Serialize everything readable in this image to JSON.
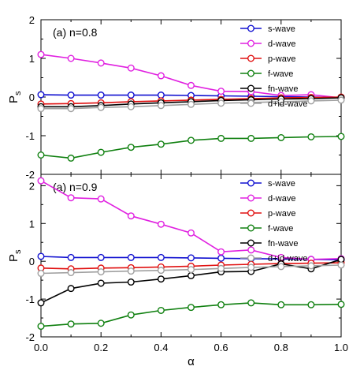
{
  "chart_data": [
    {
      "type": "line",
      "panel_label": "(a) n=0.8",
      "ylabel": "P",
      "ylabel_sub": "s",
      "xlabel": "",
      "xlim": [
        0,
        1
      ],
      "ylim": [
        -2,
        2
      ],
      "yticks": [
        -2,
        -1,
        0,
        1,
        2
      ],
      "xticks": [],
      "grid": false,
      "legend_placement": "top-right",
      "x": [
        0.0,
        0.1,
        0.2,
        0.3,
        0.4,
        0.5,
        0.6,
        0.7,
        0.8,
        0.9,
        1.0
      ],
      "series": [
        {
          "name": "s-wave",
          "color": "#1010d0",
          "values": [
            0.06,
            0.05,
            0.05,
            0.05,
            0.05,
            0.04,
            0.03,
            0.02,
            0.01,
            0.0,
            -0.01
          ]
        },
        {
          "name": "d-wave",
          "color": "#e020e0",
          "values": [
            1.1,
            1.0,
            0.88,
            0.75,
            0.55,
            0.3,
            0.15,
            0.14,
            0.04,
            0.06,
            -0.02
          ]
        },
        {
          "name": "p-wave",
          "color": "#e01010",
          "values": [
            -0.18,
            -0.17,
            -0.15,
            -0.12,
            -0.1,
            -0.08,
            -0.06,
            -0.04,
            -0.02,
            -0.01,
            0.0
          ]
        },
        {
          "name": "f-wave",
          "color": "#108010",
          "values": [
            -1.5,
            -1.58,
            -1.43,
            -1.3,
            -1.22,
            -1.12,
            -1.07,
            -1.07,
            -1.05,
            -1.03,
            -1.02
          ]
        },
        {
          "name": "fn-wave",
          "color": "#000000",
          "values": [
            -0.25,
            -0.25,
            -0.22,
            -0.18,
            -0.15,
            -0.12,
            -0.09,
            -0.07,
            -0.05,
            -0.04,
            -0.02
          ]
        },
        {
          "name": "d+id-wave",
          "color": "#a0a0a0",
          "values": [
            -0.3,
            -0.3,
            -0.27,
            -0.25,
            -0.22,
            -0.19,
            -0.16,
            -0.14,
            -0.12,
            -0.1,
            -0.08
          ]
        }
      ]
    },
    {
      "type": "line",
      "panel_label": "(a) n=0.9",
      "ylabel": "P",
      "ylabel_sub": "s",
      "xlabel": "α",
      "xlim": [
        0,
        1
      ],
      "ylim": [
        -2,
        2.3
      ],
      "yticks": [
        -2,
        -1,
        0,
        1,
        2
      ],
      "xticks": [
        0.0,
        0.2,
        0.4,
        0.6,
        0.8,
        1.0
      ],
      "xtick_labels": [
        "0.0",
        "0.2",
        "0.4",
        "0.6",
        "0.8",
        "1.0"
      ],
      "grid": false,
      "legend_placement": "top-right",
      "x": [
        0.0,
        0.1,
        0.2,
        0.3,
        0.4,
        0.5,
        0.6,
        0.7,
        0.8,
        0.9,
        1.0
      ],
      "series": [
        {
          "name": "s-wave",
          "color": "#1010d0",
          "values": [
            0.13,
            0.1,
            0.1,
            0.1,
            0.1,
            0.09,
            0.08,
            0.07,
            0.06,
            0.05,
            0.04
          ]
        },
        {
          "name": "d-wave",
          "color": "#e020e0",
          "values": [
            2.13,
            1.68,
            1.65,
            1.2,
            0.98,
            0.75,
            0.25,
            0.3,
            0.1,
            0.05,
            0.07
          ]
        },
        {
          "name": "p-wave",
          "color": "#e01010",
          "values": [
            -0.18,
            -0.2,
            -0.18,
            -0.17,
            -0.15,
            -0.13,
            -0.1,
            -0.08,
            -0.06,
            -0.05,
            -0.04
          ]
        },
        {
          "name": "f-wave",
          "color": "#108010",
          "values": [
            -1.72,
            -1.66,
            -1.64,
            -1.42,
            -1.3,
            -1.22,
            -1.15,
            -1.1,
            -1.15,
            -1.15,
            -1.14
          ]
        },
        {
          "name": "fn-wave",
          "color": "#000000",
          "values": [
            -1.1,
            -0.72,
            -0.58,
            -0.55,
            -0.47,
            -0.38,
            -0.28,
            -0.27,
            -0.07,
            -0.2,
            0.05
          ]
        },
        {
          "name": "d+id-wave",
          "color": "#a0a0a0",
          "values": [
            -0.32,
            -0.3,
            -0.28,
            -0.26,
            -0.24,
            -0.22,
            -0.19,
            -0.16,
            -0.14,
            -0.12,
            -0.1
          ]
        }
      ]
    }
  ]
}
